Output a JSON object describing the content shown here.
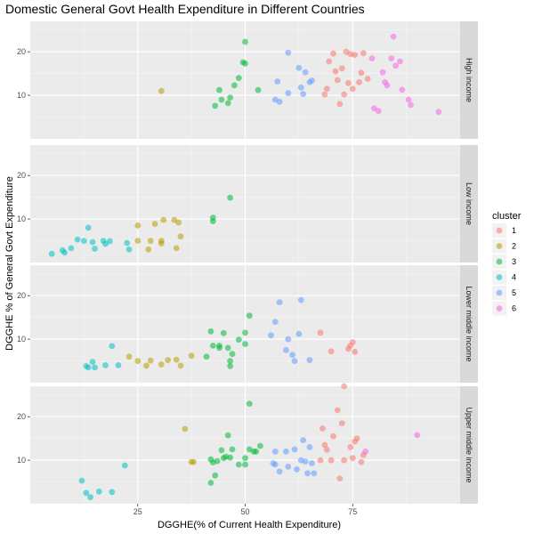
{
  "chart_data": {
    "type": "scatter",
    "title": "Domestic General Govt Health Expenditure in Different Countries",
    "xlabel": "DGGHE(% of Current Health Expenditure)",
    "ylabel": "DGGHE % of General Govt Expenditure",
    "xlim": [
      0,
      100
    ],
    "ylim": [
      0,
      27
    ],
    "x_ticks": [
      25,
      50,
      75
    ],
    "y_ticks": [
      10,
      20
    ],
    "grid": true,
    "legend": {
      "title": "cluster",
      "position": "right"
    },
    "clusters": [
      {
        "label": "1",
        "color": "#F8766D"
      },
      {
        "label": "2",
        "color": "#B79F00"
      },
      {
        "label": "3",
        "color": "#00BA38"
      },
      {
        "label": "4",
        "color": "#00BFC4"
      },
      {
        "label": "5",
        "color": "#619CFF"
      },
      {
        "label": "6",
        "color": "#F564E3"
      }
    ],
    "panels": [
      {
        "label": "High income",
        "points": [
          [
            30.5,
            11.0,
            2
          ],
          [
            43,
            7.6,
            3
          ],
          [
            44,
            11.2,
            3
          ],
          [
            44.5,
            9.0,
            3
          ],
          [
            46,
            8.2,
            3
          ],
          [
            46.5,
            9.5,
            3
          ],
          [
            47.5,
            12.3,
            3
          ],
          [
            48.5,
            14.0,
            3
          ],
          [
            49.5,
            17.6,
            3
          ],
          [
            50,
            17.3,
            3
          ],
          [
            50,
            22.3,
            3
          ],
          [
            53,
            11.2,
            3
          ],
          [
            57,
            9.0,
            5
          ],
          [
            57.5,
            13.2,
            5
          ],
          [
            58,
            8.5,
            5
          ],
          [
            60,
            10.5,
            5
          ],
          [
            60,
            19.8,
            5
          ],
          [
            62.5,
            16.3,
            5
          ],
          [
            63,
            11.8,
            5
          ],
          [
            63.5,
            10.3,
            5
          ],
          [
            64,
            15.3,
            5
          ],
          [
            65,
            13.0,
            5
          ],
          [
            65.5,
            13.4,
            5
          ],
          [
            68.5,
            10.2,
            1
          ],
          [
            69,
            11.5,
            1
          ],
          [
            69.5,
            17.8,
            1
          ],
          [
            70.5,
            19.6,
            1
          ],
          [
            71,
            15.5,
            1
          ],
          [
            71.5,
            13.5,
            1
          ],
          [
            72,
            8.0,
            1
          ],
          [
            72.5,
            16.2,
            1
          ],
          [
            73,
            10.2,
            1
          ],
          [
            73.5,
            20.0,
            1
          ],
          [
            74,
            12.8,
            1
          ],
          [
            74.5,
            19.5,
            1
          ],
          [
            75,
            11.5,
            1
          ],
          [
            75.5,
            19.3,
            1
          ],
          [
            76.5,
            13.0,
            1
          ],
          [
            77,
            15.2,
            1
          ],
          [
            77.5,
            19.7,
            1
          ],
          [
            78.5,
            13.8,
            1
          ],
          [
            79.5,
            18.5,
            6
          ],
          [
            80,
            7.0,
            6
          ],
          [
            81,
            6.4,
            6
          ],
          [
            82,
            15.3,
            6
          ],
          [
            82.5,
            13.0,
            6
          ],
          [
            83,
            12.3,
            6
          ],
          [
            84,
            18.5,
            6
          ],
          [
            84.5,
            23.5,
            6
          ],
          [
            85,
            16.8,
            6
          ],
          [
            86,
            17.8,
            6
          ],
          [
            86.5,
            11.3,
            6
          ],
          [
            88,
            9.0,
            6
          ],
          [
            88.5,
            7.8,
            6
          ],
          [
            95,
            6.2,
            6
          ]
        ]
      },
      {
        "label": "Low income",
        "points": [
          [
            5,
            2.0,
            4
          ],
          [
            7.5,
            2.8,
            4
          ],
          [
            8,
            2.3,
            4
          ],
          [
            9.5,
            3.3,
            4
          ],
          [
            11,
            5.3,
            4
          ],
          [
            12.5,
            5.0,
            4
          ],
          [
            13.5,
            8.0,
            4
          ],
          [
            14.5,
            4.7,
            4
          ],
          [
            15,
            3.2,
            4
          ],
          [
            17,
            5.0,
            4
          ],
          [
            17.5,
            4.3,
            4
          ],
          [
            18.5,
            4.9,
            4
          ],
          [
            22.5,
            4.5,
            4
          ],
          [
            23,
            3.0,
            4
          ],
          [
            25,
            8.5,
            2
          ],
          [
            25,
            5.0,
            2
          ],
          [
            27.5,
            3.0,
            2
          ],
          [
            28,
            5.0,
            2
          ],
          [
            29,
            8.9,
            2
          ],
          [
            30.5,
            4.4,
            2
          ],
          [
            30.5,
            5.0,
            2
          ],
          [
            31,
            9.8,
            2
          ],
          [
            33.5,
            9.8,
            2
          ],
          [
            34,
            3.3,
            2
          ],
          [
            34.5,
            9.2,
            2
          ],
          [
            35,
            6.0,
            2
          ],
          [
            42.5,
            9.5,
            3
          ],
          [
            42.5,
            10.3,
            3
          ],
          [
            46.5,
            14.9,
            3
          ]
        ]
      },
      {
        "label": "Lower middle income",
        "points": [
          [
            13,
            3.8,
            4
          ],
          [
            13.5,
            3.5,
            4
          ],
          [
            14.5,
            4.8,
            4
          ],
          [
            15,
            3.5,
            4
          ],
          [
            17.5,
            4.0,
            4
          ],
          [
            19,
            8.4,
            4
          ],
          [
            20.5,
            4.0,
            4
          ],
          [
            23,
            6.0,
            2
          ],
          [
            25,
            5.0,
            2
          ],
          [
            27,
            3.9,
            2
          ],
          [
            28,
            5.1,
            2
          ],
          [
            30.5,
            4.2,
            2
          ],
          [
            32,
            5.2,
            2
          ],
          [
            34,
            5.3,
            2
          ],
          [
            35,
            3.9,
            2
          ],
          [
            37.5,
            6.2,
            2
          ],
          [
            41,
            6.0,
            3
          ],
          [
            42,
            11.8,
            3
          ],
          [
            42.5,
            8.5,
            3
          ],
          [
            44,
            8.5,
            3
          ],
          [
            44,
            8.0,
            3
          ],
          [
            45,
            11.4,
            3
          ],
          [
            46,
            8.0,
            3
          ],
          [
            46.5,
            5.0,
            3
          ],
          [
            46.5,
            3.8,
            3
          ],
          [
            47,
            6.6,
            3
          ],
          [
            48.5,
            9.9,
            3
          ],
          [
            50,
            11.5,
            3
          ],
          [
            50,
            8.9,
            3
          ],
          [
            51,
            15.4,
            3
          ],
          [
            56,
            10.9,
            5
          ],
          [
            57,
            14.0,
            5
          ],
          [
            58,
            18.5,
            5
          ],
          [
            59.5,
            7.5,
            5
          ],
          [
            60,
            10.0,
            5
          ],
          [
            61,
            6.4,
            5
          ],
          [
            61.5,
            5.0,
            5
          ],
          [
            62.5,
            11.2,
            5
          ],
          [
            63,
            19.0,
            5
          ],
          [
            65,
            5.2,
            5
          ],
          [
            67.5,
            11.5,
            1
          ],
          [
            70,
            7.2,
            1
          ],
          [
            74,
            7.8,
            1
          ],
          [
            74.5,
            8.5,
            1
          ],
          [
            75,
            9.3,
            1
          ],
          [
            75.5,
            7.1,
            1
          ]
        ]
      },
      {
        "label": "Upper middle income",
        "points": [
          [
            12,
            5.3,
            4
          ],
          [
            13,
            2.5,
            4
          ],
          [
            14,
            1.5,
            4
          ],
          [
            16,
            2.8,
            4
          ],
          [
            19,
            2.7,
            4
          ],
          [
            22,
            8.8,
            4
          ],
          [
            36,
            17.2,
            2
          ],
          [
            37.5,
            9.6,
            2
          ],
          [
            38,
            9.6,
            2
          ],
          [
            42,
            4.8,
            3
          ],
          [
            42,
            10.2,
            3
          ],
          [
            42.5,
            9.5,
            3
          ],
          [
            43,
            6.5,
            3
          ],
          [
            43.5,
            9.8,
            3
          ],
          [
            44.5,
            12.3,
            3
          ],
          [
            45,
            10.5,
            3
          ],
          [
            45.5,
            10.8,
            3
          ],
          [
            46,
            15.7,
            3
          ],
          [
            46.5,
            10.6,
            3
          ],
          [
            47,
            12.5,
            3
          ],
          [
            48.5,
            9.0,
            3
          ],
          [
            50,
            9.0,
            3
          ],
          [
            50,
            10.5,
            3
          ],
          [
            51,
            12.5,
            3
          ],
          [
            51,
            23.0,
            3
          ],
          [
            52,
            12.0,
            3
          ],
          [
            52.5,
            12.0,
            3
          ],
          [
            53.5,
            13.3,
            3
          ],
          [
            56.5,
            9.3,
            5
          ],
          [
            57,
            9.0,
            5
          ],
          [
            57,
            12.0,
            5
          ],
          [
            58,
            7.4,
            5
          ],
          [
            59.5,
            12.0,
            5
          ],
          [
            60,
            8.5,
            5
          ],
          [
            61.5,
            12.5,
            5
          ],
          [
            62,
            7.9,
            5
          ],
          [
            63,
            10.0,
            5
          ],
          [
            63.5,
            14.6,
            5
          ],
          [
            64,
            9.7,
            5
          ],
          [
            64.5,
            7.0,
            5
          ],
          [
            65,
            13.0,
            5
          ],
          [
            65.5,
            9.3,
            5
          ],
          [
            66,
            7.0,
            5
          ],
          [
            67.5,
            10.0,
            1
          ],
          [
            68,
            17.3,
            1
          ],
          [
            68.5,
            13.5,
            1
          ],
          [
            69,
            12.4,
            1
          ],
          [
            70,
            10.0,
            1
          ],
          [
            70.5,
            15.5,
            1
          ],
          [
            71.5,
            21.5,
            1
          ],
          [
            72,
            5.8,
            1
          ],
          [
            72.5,
            18.5,
            1
          ],
          [
            73,
            10.0,
            1
          ],
          [
            73,
            27.0,
            1
          ],
          [
            74.5,
            13.0,
            1
          ],
          [
            75,
            10.5,
            1
          ],
          [
            75.5,
            14.3,
            1
          ],
          [
            76,
            15.0,
            1
          ],
          [
            77,
            9.6,
            1
          ],
          [
            77.5,
            11.2,
            1
          ],
          [
            78,
            12.0,
            6
          ],
          [
            90,
            15.8,
            6
          ]
        ]
      }
    ]
  }
}
